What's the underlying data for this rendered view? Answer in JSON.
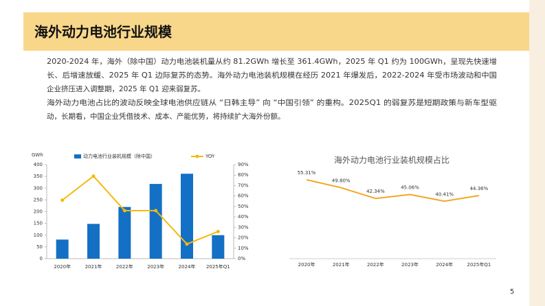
{
  "header": {
    "title": "海外动力电池行业规模"
  },
  "paragraph": {
    "lines": [
      "2020-2024 年，海外（除中国）动力电池装机量从约 81.2GWh 增长至 361.4GWh，2025 年 Q1 约为 100GWh，呈现先快速增",
      "长、后增速放缓、2025 年 Q1 边际复苏的态势。海外动力电池装机规模在经历 2021 年爆发后，2022-2024 年受市场波动和中国",
      "企业挤压进入调整期，2025 年 Q1 迎来弱复苏。",
      "海外动力电池占比的波动反映全球电池供应链从 “日韩主导” 向 “中国引领” 的重构。2025Q1 的弱复苏是短期政策与新车型驱",
      "动，长期看，中国企业凭借技术、成本、产能优势，将持续扩大海外份额。"
    ]
  },
  "page_number": "5",
  "chart_data": [
    {
      "type": "bar",
      "y_label": "GWh",
      "categories": [
        "2020年",
        "2021年",
        "2022年",
        "2023年",
        "2024年",
        "2025年Q1"
      ],
      "series": [
        {
          "name": "动力电池行业装机规模（除中国）",
          "color": "#1470c4",
          "values": [
            81.2,
            148,
            220,
            318,
            361.4,
            100
          ]
        },
        {
          "name": "YOY",
          "type": "line",
          "axis": "y2",
          "color": "#f5b90a",
          "values": [
            56,
            79,
            46,
            46,
            14,
            26
          ]
        }
      ],
      "ylim": [
        0,
        400
      ],
      "yticks": [
        0,
        50,
        100,
        150,
        200,
        250,
        300,
        350,
        400
      ],
      "y2lim": [
        0,
        90
      ],
      "y2ticks": [
        {
          "value": 0,
          "label": "0%"
        },
        {
          "value": 10,
          "label": "10%"
        },
        {
          "value": 20,
          "label": "20%"
        },
        {
          "value": 30,
          "label": "30%"
        },
        {
          "value": 40,
          "label": "40%"
        },
        {
          "value": 50,
          "label": "50%"
        },
        {
          "value": 60,
          "label": "60%"
        },
        {
          "value": 70,
          "label": "70%"
        },
        {
          "value": 80,
          "label": "80%"
        },
        {
          "value": 90,
          "label": "90%"
        }
      ],
      "legend": "top"
    },
    {
      "type": "line",
      "title": "海外动力电池行业装机规模占比",
      "categories": [
        "2020年",
        "2021年",
        "2022年",
        "2023年",
        "2024年",
        "2025年Q1"
      ],
      "values": [
        55.31,
        49.8,
        42.34,
        45.06,
        40.41,
        44.36
      ],
      "value_labels": [
        "55.31%",
        "49.80%",
        "42.34%",
        "45.06%",
        "40.41%",
        "44.36%"
      ],
      "color": "#f5a623"
    }
  ]
}
